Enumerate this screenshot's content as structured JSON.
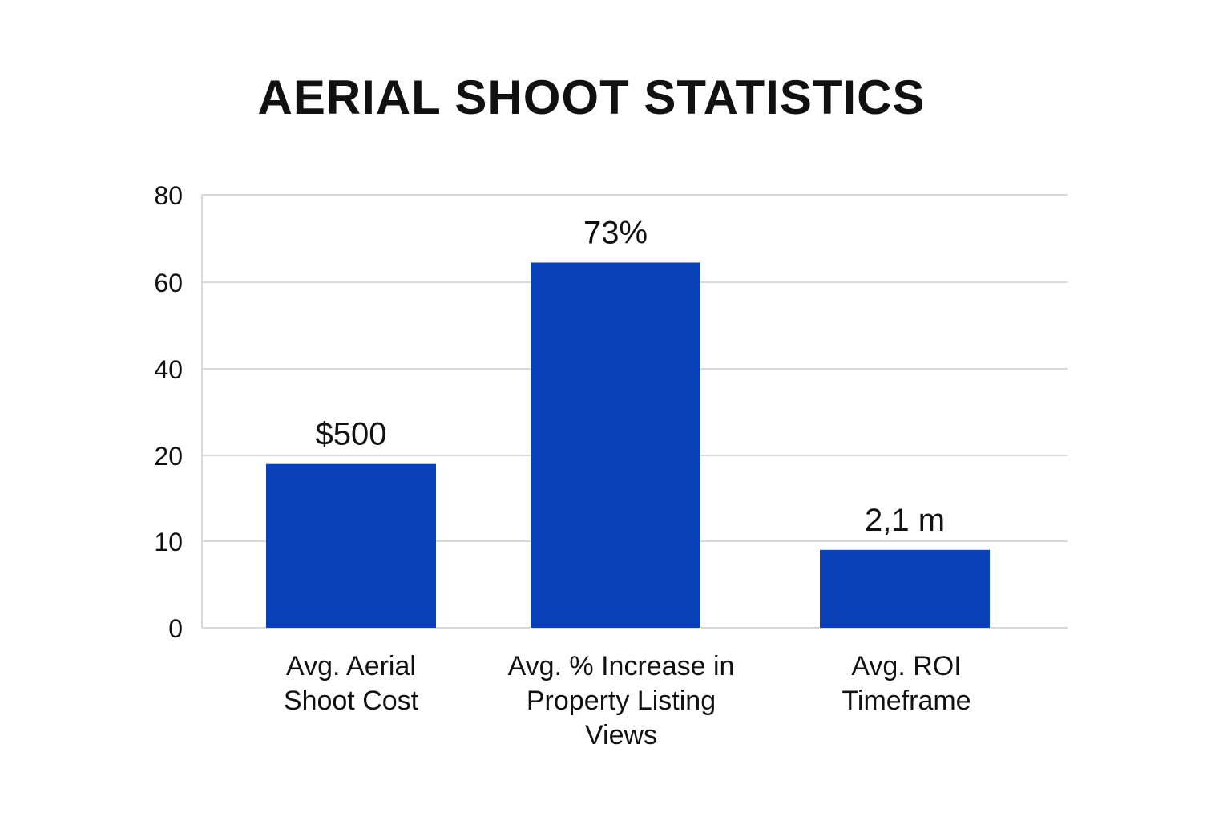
{
  "chart_data": {
    "type": "bar",
    "title": "AERIAL SHOOT STATISTICS",
    "categories": [
      [
        "Avg. Aerial",
        "Shoot Cost"
      ],
      [
        "Avg. % Increase in",
        "Property Listing",
        "Views"
      ],
      [
        "Avg. ROI",
        "Timeframe"
      ]
    ],
    "values": [
      19,
      64.5,
      9
    ],
    "data_labels": [
      "$500",
      "73%",
      "2,1 m"
    ],
    "yticks": [
      0,
      10,
      20,
      40,
      60,
      80
    ],
    "ylim": [
      0,
      80
    ],
    "xlabel": "",
    "ylabel": "",
    "grid": true,
    "bar_color": "#0b41b8",
    "grid_color": "#d9d9d9"
  }
}
